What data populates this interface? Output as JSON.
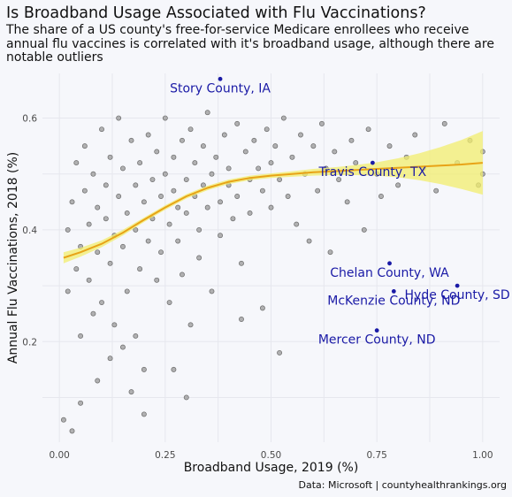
{
  "header": {
    "title": "Is Broadband Usage Associated with Flu Vaccinations?",
    "subtitle": "The share of a US county's free-for-service Medicare enrollees who receive annual flu vaccines is correlated with it's broadband usage, although there are notable outliers"
  },
  "caption": "Data: Microsoft | countyhealthrankings.org",
  "colors": {
    "background": "#f6f7fb",
    "grid": "#e6e7ee",
    "point_fill": "#a3a3a3",
    "point_stroke": "#6b6b6b",
    "smooth_line": "#e8a317",
    "ribbon": "#f2ee6e",
    "annotation": "#1a1aa6"
  },
  "chart_data": {
    "type": "scatter",
    "xlabel": "Broadband Usage, 2019 (%)",
    "ylabel": "Annual Flu Vaccinations, 2018 (%)",
    "xlim": [
      -0.04,
      1.04
    ],
    "ylim": [
      0.02,
      0.68
    ],
    "x_ticks": [
      0.0,
      0.25,
      0.5,
      0.75,
      1.0
    ],
    "x_tick_labels": [
      "0.00",
      "0.25",
      "0.50",
      "0.75",
      "1.00"
    ],
    "y_ticks": [
      0.2,
      0.4,
      0.6
    ],
    "y_tick_labels": [
      "0.2",
      "0.4",
      "0.6"
    ],
    "grid": true,
    "legend": "none",
    "points": [
      [
        0.01,
        0.06
      ],
      [
        0.02,
        0.29
      ],
      [
        0.02,
        0.4
      ],
      [
        0.03,
        0.45
      ],
      [
        0.04,
        0.33
      ],
      [
        0.03,
        0.04
      ],
      [
        0.04,
        0.52
      ],
      [
        0.05,
        0.21
      ],
      [
        0.05,
        0.37
      ],
      [
        0.06,
        0.47
      ],
      [
        0.06,
        0.55
      ],
      [
        0.07,
        0.31
      ],
      [
        0.07,
        0.41
      ],
      [
        0.08,
        0.25
      ],
      [
        0.08,
        0.5
      ],
      [
        0.09,
        0.36
      ],
      [
        0.09,
        0.44
      ],
      [
        0.1,
        0.58
      ],
      [
        0.1,
        0.27
      ],
      [
        0.11,
        0.42
      ],
      [
        0.11,
        0.48
      ],
      [
        0.12,
        0.34
      ],
      [
        0.12,
        0.53
      ],
      [
        0.13,
        0.39
      ],
      [
        0.13,
        0.23
      ],
      [
        0.14,
        0.46
      ],
      [
        0.14,
        0.6
      ],
      [
        0.15,
        0.37
      ],
      [
        0.15,
        0.51
      ],
      [
        0.16,
        0.29
      ],
      [
        0.16,
        0.43
      ],
      [
        0.17,
        0.56
      ],
      [
        0.17,
        0.11
      ],
      [
        0.18,
        0.4
      ],
      [
        0.18,
        0.48
      ],
      [
        0.19,
        0.33
      ],
      [
        0.19,
        0.52
      ],
      [
        0.2,
        0.45
      ],
      [
        0.2,
        0.07
      ],
      [
        0.21,
        0.38
      ],
      [
        0.21,
        0.57
      ],
      [
        0.22,
        0.42
      ],
      [
        0.22,
        0.49
      ],
      [
        0.23,
        0.31
      ],
      [
        0.23,
        0.54
      ],
      [
        0.24,
        0.46
      ],
      [
        0.24,
        0.36
      ],
      [
        0.25,
        0.5
      ],
      [
        0.25,
        0.6
      ],
      [
        0.26,
        0.41
      ],
      [
        0.26,
        0.27
      ],
      [
        0.27,
        0.47
      ],
      [
        0.27,
        0.53
      ],
      [
        0.28,
        0.38
      ],
      [
        0.28,
        0.44
      ],
      [
        0.29,
        0.56
      ],
      [
        0.29,
        0.32
      ],
      [
        0.3,
        0.49
      ],
      [
        0.3,
        0.43
      ],
      [
        0.31,
        0.58
      ],
      [
        0.31,
        0.23
      ],
      [
        0.32,
        0.46
      ],
      [
        0.32,
        0.52
      ],
      [
        0.33,
        0.4
      ],
      [
        0.33,
        0.35
      ],
      [
        0.34,
        0.55
      ],
      [
        0.34,
        0.48
      ],
      [
        0.35,
        0.44
      ],
      [
        0.35,
        0.61
      ],
      [
        0.36,
        0.5
      ],
      [
        0.36,
        0.29
      ],
      [
        0.37,
        0.53
      ],
      [
        0.38,
        0.45
      ],
      [
        0.38,
        0.39
      ],
      [
        0.39,
        0.57
      ],
      [
        0.4,
        0.48
      ],
      [
        0.4,
        0.51
      ],
      [
        0.41,
        0.42
      ],
      [
        0.42,
        0.59
      ],
      [
        0.42,
        0.46
      ],
      [
        0.43,
        0.34
      ],
      [
        0.44,
        0.54
      ],
      [
        0.45,
        0.49
      ],
      [
        0.45,
        0.43
      ],
      [
        0.46,
        0.56
      ],
      [
        0.47,
        0.51
      ],
      [
        0.48,
        0.47
      ],
      [
        0.48,
        0.26
      ],
      [
        0.49,
        0.58
      ],
      [
        0.5,
        0.52
      ],
      [
        0.5,
        0.44
      ],
      [
        0.51,
        0.55
      ],
      [
        0.52,
        0.49
      ],
      [
        0.53,
        0.6
      ],
      [
        0.54,
        0.46
      ],
      [
        0.55,
        0.53
      ],
      [
        0.56,
        0.41
      ],
      [
        0.57,
        0.57
      ],
      [
        0.58,
        0.5
      ],
      [
        0.59,
        0.38
      ],
      [
        0.6,
        0.55
      ],
      [
        0.61,
        0.47
      ],
      [
        0.62,
        0.59
      ],
      [
        0.63,
        0.51
      ],
      [
        0.64,
        0.36
      ],
      [
        0.65,
        0.54
      ],
      [
        0.66,
        0.49
      ],
      [
        0.68,
        0.45
      ],
      [
        0.69,
        0.56
      ],
      [
        0.7,
        0.52
      ],
      [
        0.72,
        0.4
      ],
      [
        0.73,
        0.58
      ],
      [
        0.75,
        0.5
      ],
      [
        0.76,
        0.46
      ],
      [
        0.78,
        0.55
      ],
      [
        0.8,
        0.48
      ],
      [
        0.82,
        0.53
      ],
      [
        0.84,
        0.57
      ],
      [
        0.86,
        0.51
      ],
      [
        0.89,
        0.47
      ],
      [
        0.91,
        0.59
      ],
      [
        0.94,
        0.52
      ],
      [
        0.97,
        0.56
      ],
      [
        1.0,
        0.5
      ],
      [
        1.0,
        0.54
      ],
      [
        0.99,
        0.48
      ],
      [
        0.15,
        0.19
      ],
      [
        0.27,
        0.15
      ],
      [
        0.09,
        0.13
      ],
      [
        0.2,
        0.15
      ],
      [
        0.3,
        0.1
      ],
      [
        0.43,
        0.24
      ],
      [
        0.52,
        0.18
      ],
      [
        0.12,
        0.17
      ],
      [
        0.05,
        0.09
      ],
      [
        0.18,
        0.21
      ]
    ],
    "smooth": {
      "x": [
        0.01,
        0.05,
        0.1,
        0.15,
        0.2,
        0.25,
        0.3,
        0.35,
        0.4,
        0.45,
        0.5,
        0.55,
        0.6,
        0.65,
        0.7,
        0.75,
        0.8,
        0.85,
        0.9,
        0.95,
        1.0
      ],
      "y": [
        0.35,
        0.36,
        0.375,
        0.395,
        0.418,
        0.44,
        0.46,
        0.475,
        0.486,
        0.493,
        0.497,
        0.5,
        0.503,
        0.505,
        0.507,
        0.509,
        0.511,
        0.513,
        0.515,
        0.517,
        0.52
      ],
      "lower": [
        0.34,
        0.352,
        0.369,
        0.39,
        0.414,
        0.436,
        0.456,
        0.471,
        0.482,
        0.489,
        0.493,
        0.495,
        0.497,
        0.498,
        0.498,
        0.497,
        0.494,
        0.489,
        0.482,
        0.473,
        0.463
      ],
      "upper": [
        0.36,
        0.368,
        0.381,
        0.4,
        0.422,
        0.444,
        0.464,
        0.479,
        0.49,
        0.497,
        0.501,
        0.505,
        0.509,
        0.512,
        0.516,
        0.521,
        0.528,
        0.537,
        0.548,
        0.561,
        0.577
      ]
    },
    "annotations": [
      {
        "label": "Story County, IA",
        "x": 0.38,
        "y": 0.67
      },
      {
        "label": "Travis County, TX",
        "x": 0.74,
        "y": 0.52
      },
      {
        "label": "Chelan County, WA",
        "x": 0.78,
        "y": 0.34
      },
      {
        "label": "Hyde County, SD",
        "x": 0.94,
        "y": 0.3
      },
      {
        "label": "McKenzie County, ND",
        "x": 0.79,
        "y": 0.29
      },
      {
        "label": "Mercer County, ND",
        "x": 0.75,
        "y": 0.22
      }
    ]
  }
}
